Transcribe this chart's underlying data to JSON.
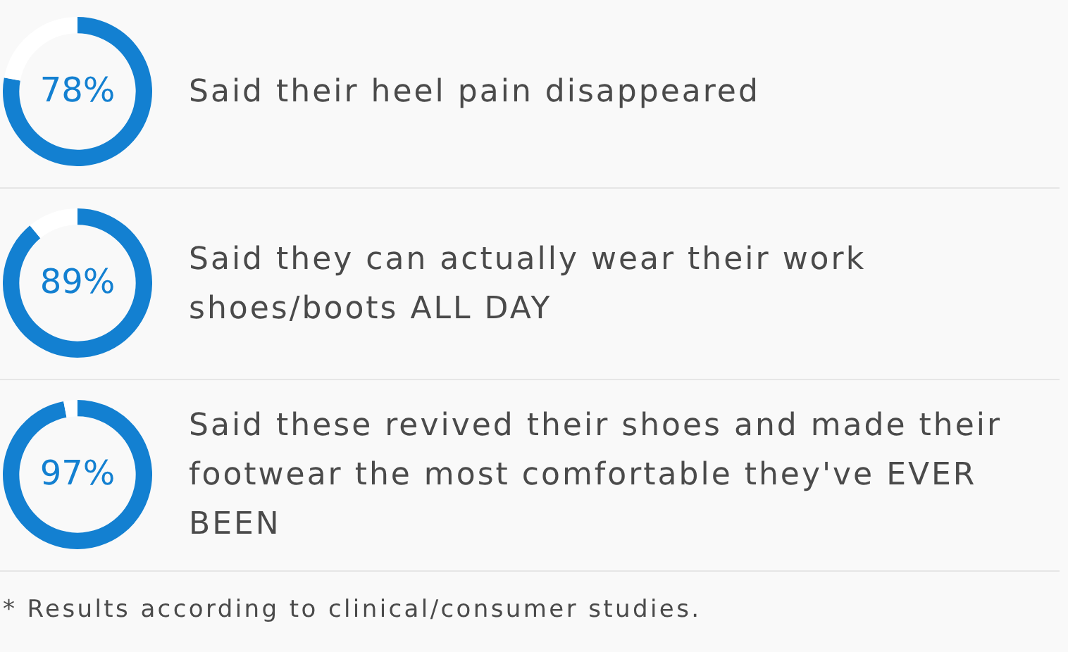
{
  "chart_data": [
    {
      "type": "donut",
      "title": "Said their heel pain disappeared",
      "categories": [
        null,
        null
      ],
      "values": [
        78,
        22
      ],
      "colors": [
        "#1380d1",
        "#ffffff"
      ],
      "value_labels": [
        "78%",
        null
      ]
    },
    {
      "type": "donut",
      "title": "Said they can actually wear their work shoes/boots ALL DAY",
      "categories": [
        null,
        null
      ],
      "values": [
        89,
        11
      ],
      "colors": [
        "#1380d1",
        "#ffffff"
      ],
      "value_labels": [
        "89%",
        null
      ]
    },
    {
      "type": "donut",
      "title": "Said these revived their shoes and made their footwear the most comfortable they've EVER BEEN",
      "categories": [
        null,
        null
      ],
      "values": [
        97,
        3
      ],
      "colors": [
        "#1380d1",
        "#ffffff"
      ],
      "value_labels": [
        "97%",
        null
      ],
      "annotations": [
        "* Results according to clinical/consumer studies."
      ]
    }
  ]
}
